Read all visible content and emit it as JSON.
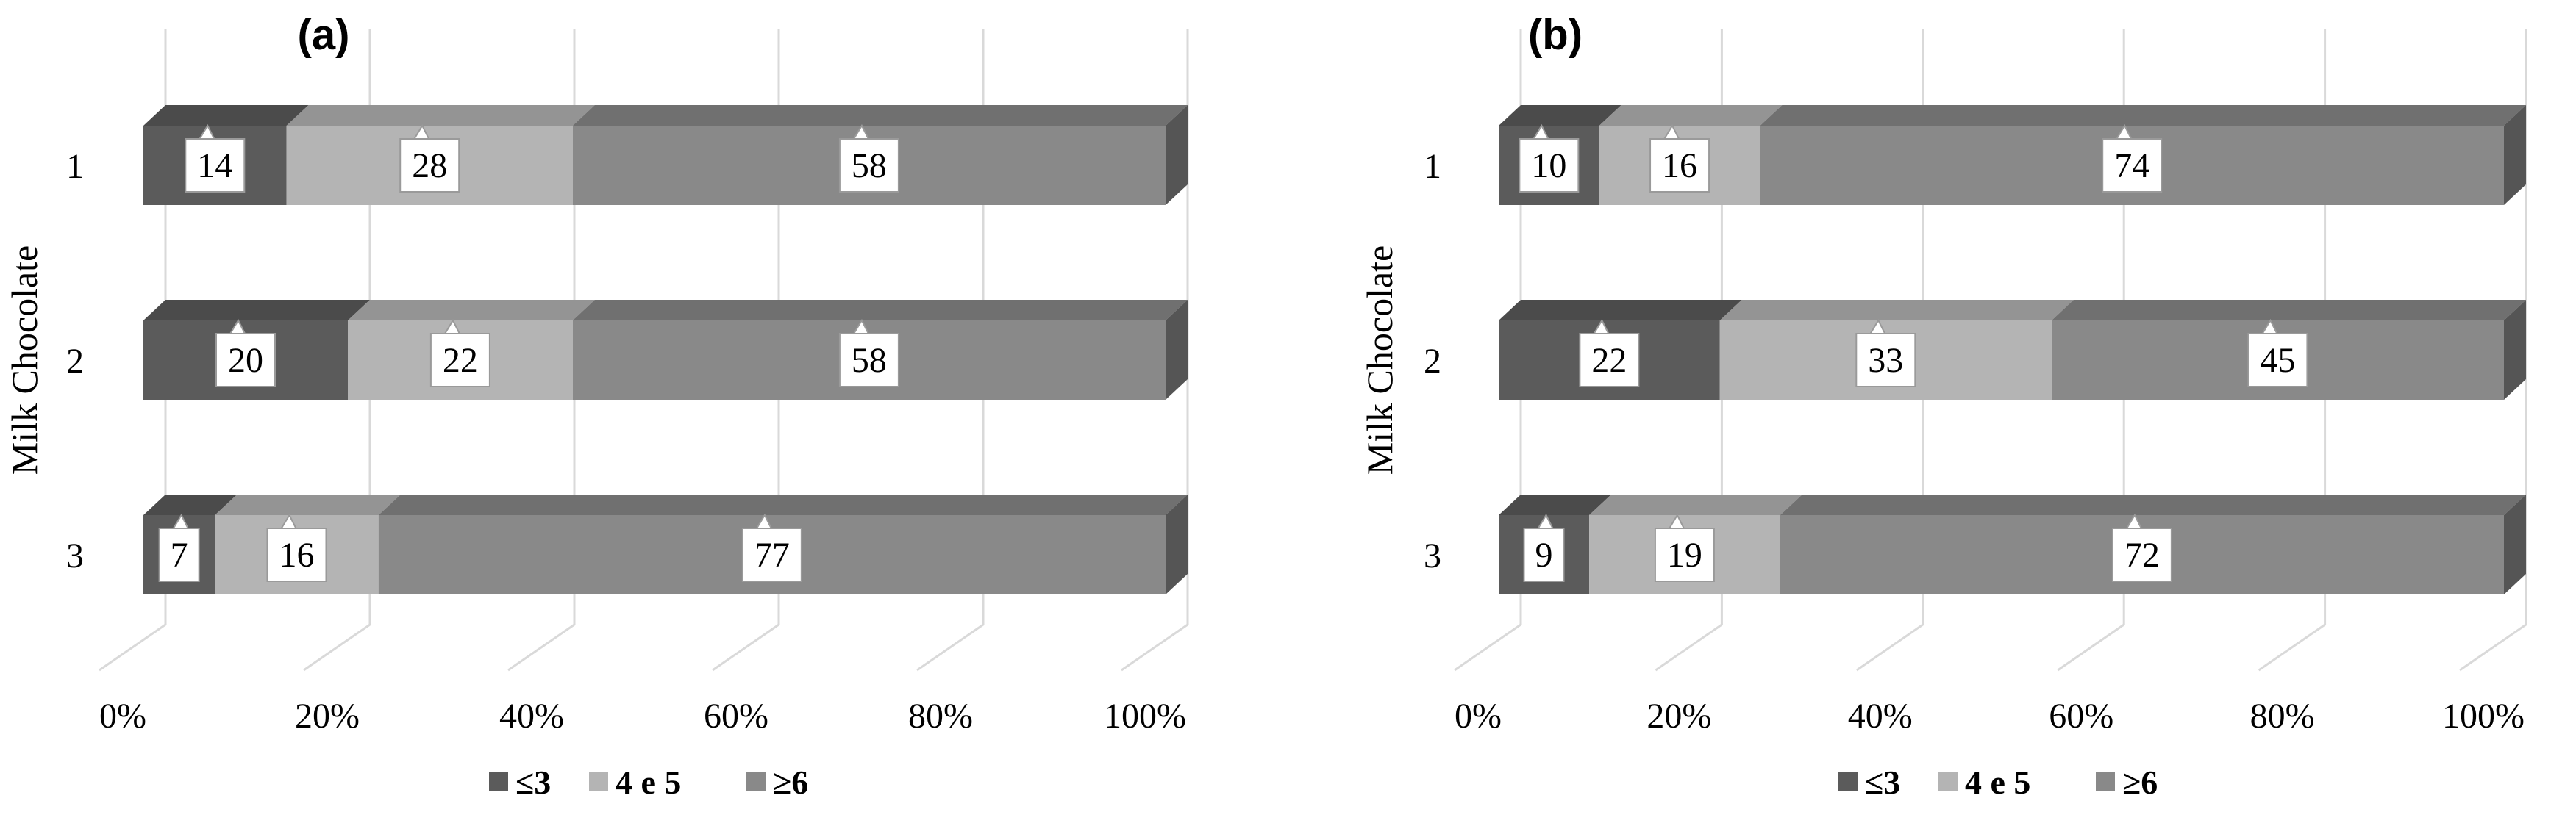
{
  "chart_data": [
    {
      "type": "bar",
      "orientation": "horizontal",
      "stacked": "percent",
      "style": "3d",
      "title": "(a)",
      "ylabel": "Milk Chocolate",
      "categories": [
        "1",
        "2",
        "3"
      ],
      "x_ticks": [
        "0%",
        "20%",
        "40%",
        "60%",
        "80%",
        "100%"
      ],
      "xlim": [
        0,
        100
      ],
      "grid": true,
      "legend_position": "bottom",
      "series": [
        {
          "name": "≤3",
          "values": [
            14,
            20,
            7
          ],
          "color": "#5b5b5b"
        },
        {
          "name": "4 e 5",
          "values": [
            28,
            22,
            16
          ],
          "color": "#b4b4b4"
        },
        {
          "name": "≥6",
          "values": [
            58,
            58,
            77
          ],
          "color": "#898989"
        }
      ]
    },
    {
      "type": "bar",
      "orientation": "horizontal",
      "stacked": "percent",
      "style": "3d",
      "title": "(b)",
      "ylabel": "Milk Chocolate",
      "categories": [
        "1",
        "2",
        "3"
      ],
      "x_ticks": [
        "0%",
        "20%",
        "40%",
        "60%",
        "80%",
        "100%"
      ],
      "xlim": [
        0,
        100
      ],
      "grid": true,
      "legend_position": "bottom",
      "series": [
        {
          "name": "≤3",
          "values": [
            10,
            22,
            9
          ],
          "color": "#5b5b5b"
        },
        {
          "name": "4 e 5",
          "values": [
            16,
            33,
            19
          ],
          "color": "#b4b4b4"
        },
        {
          "name": "≥6",
          "values": [
            74,
            45,
            72
          ],
          "color": "#898989"
        }
      ]
    }
  ]
}
